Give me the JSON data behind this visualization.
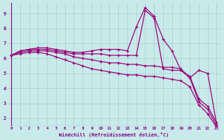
{
  "background_color": "#c8eaea",
  "grid_color": "#a8cccc",
  "line_color": "#990077",
  "xlabel": "Windchill (Refroidissement éolien,°C)",
  "xlabel_color": "#880088",
  "tick_color": "#880088",
  "xlim": [
    -0.5,
    23.5
  ],
  "ylim": [
    1.5,
    9.7
  ],
  "yticks": [
    2,
    3,
    4,
    5,
    6,
    7,
    8,
    9
  ],
  "xticks": [
    0,
    1,
    2,
    3,
    4,
    5,
    6,
    7,
    8,
    9,
    10,
    11,
    12,
    13,
    14,
    15,
    16,
    17,
    18,
    19,
    20,
    21,
    22,
    23
  ],
  "series": [
    [
      6.2,
      6.5,
      6.6,
      6.7,
      6.7,
      6.6,
      6.5,
      6.4,
      6.4,
      6.5,
      6.6,
      6.6,
      6.6,
      6.5,
      8.1,
      9.4,
      8.8,
      7.3,
      6.5,
      5.2,
      4.8,
      3.3,
      2.8,
      1.7
    ],
    [
      6.2,
      6.5,
      6.6,
      6.6,
      6.6,
      6.5,
      6.4,
      6.3,
      6.3,
      6.3,
      6.3,
      6.2,
      6.2,
      6.2,
      6.2,
      9.2,
      8.7,
      5.3,
      5.2,
      5.2,
      4.7,
      5.2,
      5.0,
      1.6
    ],
    [
      6.2,
      6.4,
      6.5,
      6.5,
      6.5,
      6.4,
      6.3,
      6.1,
      6.0,
      5.9,
      5.8,
      5.7,
      5.7,
      5.6,
      5.6,
      5.5,
      5.5,
      5.4,
      5.4,
      5.3,
      4.7,
      3.1,
      2.6,
      1.5
    ],
    [
      6.2,
      6.3,
      6.4,
      6.4,
      6.3,
      6.1,
      5.9,
      5.7,
      5.5,
      5.3,
      5.2,
      5.1,
      5.0,
      4.9,
      4.9,
      4.8,
      4.8,
      4.7,
      4.6,
      4.5,
      4.1,
      2.9,
      2.3,
      1.4
    ]
  ]
}
